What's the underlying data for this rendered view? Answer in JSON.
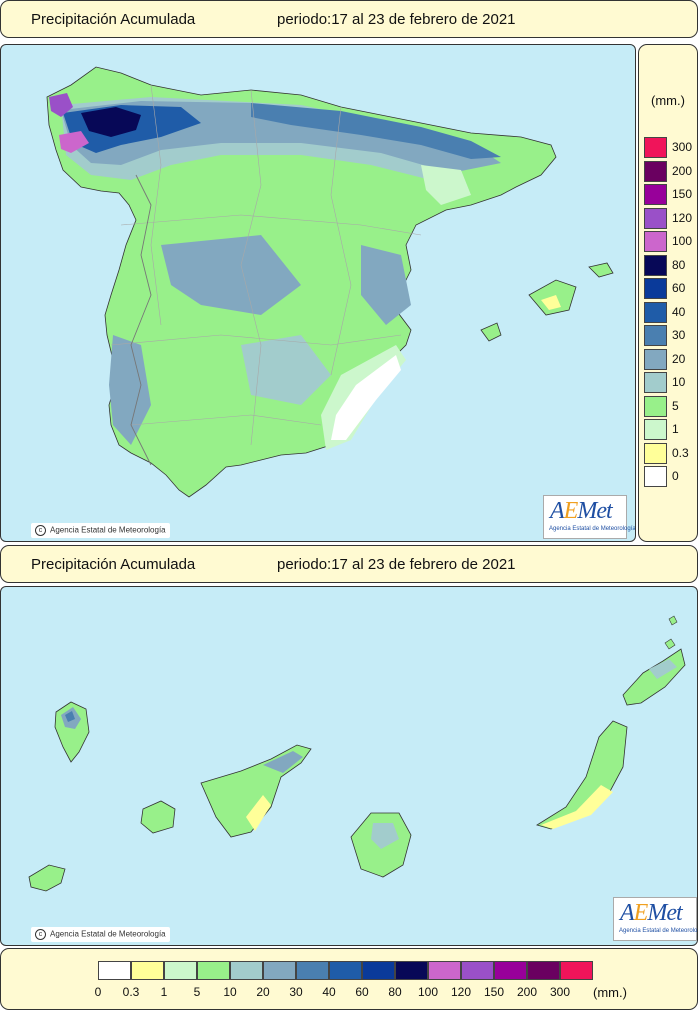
{
  "header_top": {
    "title": "Precipitación Acumulada",
    "period": "periodo:17 al 23 de febrero de 2021"
  },
  "header_bottom": {
    "title": "Precipitación Acumulada",
    "period": "periodo:17 al 23 de febrero de 2021"
  },
  "legend": {
    "unit": "(mm.)",
    "vertical_labels": [
      "300",
      "200",
      "150",
      "120",
      "100",
      "80",
      "60",
      "40",
      "30",
      "20",
      "10",
      "5",
      "1",
      "0.3",
      "0"
    ],
    "vertical_colors": [
      "#f0145a",
      "#6a0060",
      "#98009a",
      "#9a50c8",
      "#cc66cc",
      "#070857",
      "#0a3a9a",
      "#1f5ca8",
      "#4a7fb0",
      "#82a8c0",
      "#a2cccc",
      "#98f08a",
      "#ccf7cc",
      "#ffff99",
      "#ffffff"
    ],
    "horizontal_labels": [
      "0",
      "0.3",
      "1",
      "5",
      "10",
      "20",
      "30",
      "40",
      "60",
      "80",
      "100",
      "120",
      "150",
      "200",
      "300"
    ],
    "horizontal_colors": [
      "#ffffff",
      "#ffff99",
      "#ccf7cc",
      "#98f08a",
      "#a2cccc",
      "#82a8c0",
      "#4a7fb0",
      "#1f5ca8",
      "#0a3a9a",
      "#070857",
      "#cc66cc",
      "#9a50c8",
      "#98009a",
      "#6a0060",
      "#f0145a"
    ]
  },
  "credits": {
    "copyright": "Agencia Estatal de Meteorología",
    "logo_text": "AEMet",
    "logo_sub": "Agencia Estatal de Meteorología"
  }
}
